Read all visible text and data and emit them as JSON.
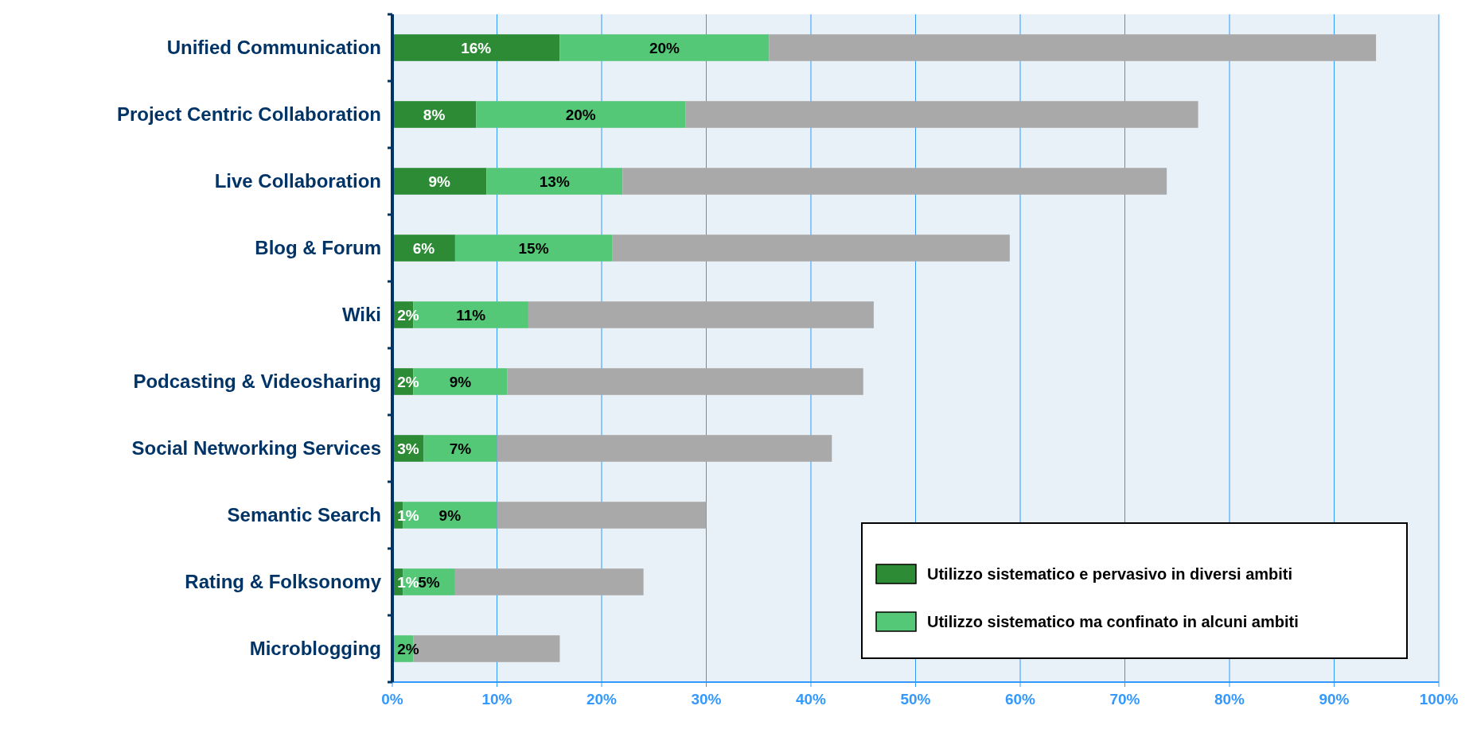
{
  "chart_data": {
    "type": "bar",
    "orientation": "horizontal",
    "stacked": true,
    "categories": [
      "Unified Communication",
      "Project Centric Collaboration",
      "Live Collaboration",
      "Blog & Forum",
      "Wiki",
      "Podcasting & Videosharing",
      "Social Networking Services",
      "Semantic Search",
      "Rating & Folksonomy",
      "Microblogging"
    ],
    "series": [
      {
        "name": "Utilizzo sistematico e pervasivo in diversi ambiti",
        "color": "#2e8b35",
        "values": [
          16,
          8,
          9,
          6,
          2,
          2,
          3,
          1,
          1,
          0
        ],
        "value_labels": [
          "16%",
          "8%",
          "9%",
          "6%",
          "2%",
          "2%",
          "3%",
          "1%",
          "1%",
          null
        ]
      },
      {
        "name": "Utilizzo sistematico ma confinato in alcuni ambiti",
        "color": "#55c878",
        "values": [
          20,
          20,
          13,
          15,
          11,
          9,
          7,
          9,
          5,
          2
        ],
        "value_labels": [
          "20%",
          "20%",
          "13%",
          "15%",
          "11%",
          "9%",
          "7%",
          "9%",
          "5%",
          "2%"
        ]
      },
      {
        "color": "#a9a9a9",
        "values": [
          58,
          49,
          52,
          38,
          33,
          34,
          32,
          20,
          18,
          14
        ]
      }
    ],
    "xlim": [
      0,
      100
    ],
    "xticks": [
      {
        "value": 0,
        "label": "0%"
      },
      {
        "value": 10,
        "label": "10%"
      },
      {
        "value": 20,
        "label": "20%"
      },
      {
        "value": 30,
        "label": "30%"
      },
      {
        "value": 40,
        "label": "40%"
      },
      {
        "value": 50,
        "label": "50%"
      },
      {
        "value": 60,
        "label": "60%"
      },
      {
        "value": 70,
        "label": "70%"
      },
      {
        "value": 80,
        "label": "80%"
      },
      {
        "value": 90,
        "label": "90%"
      },
      {
        "value": 100,
        "label": "100%"
      }
    ],
    "grid": "x",
    "legend": "bottom right"
  }
}
